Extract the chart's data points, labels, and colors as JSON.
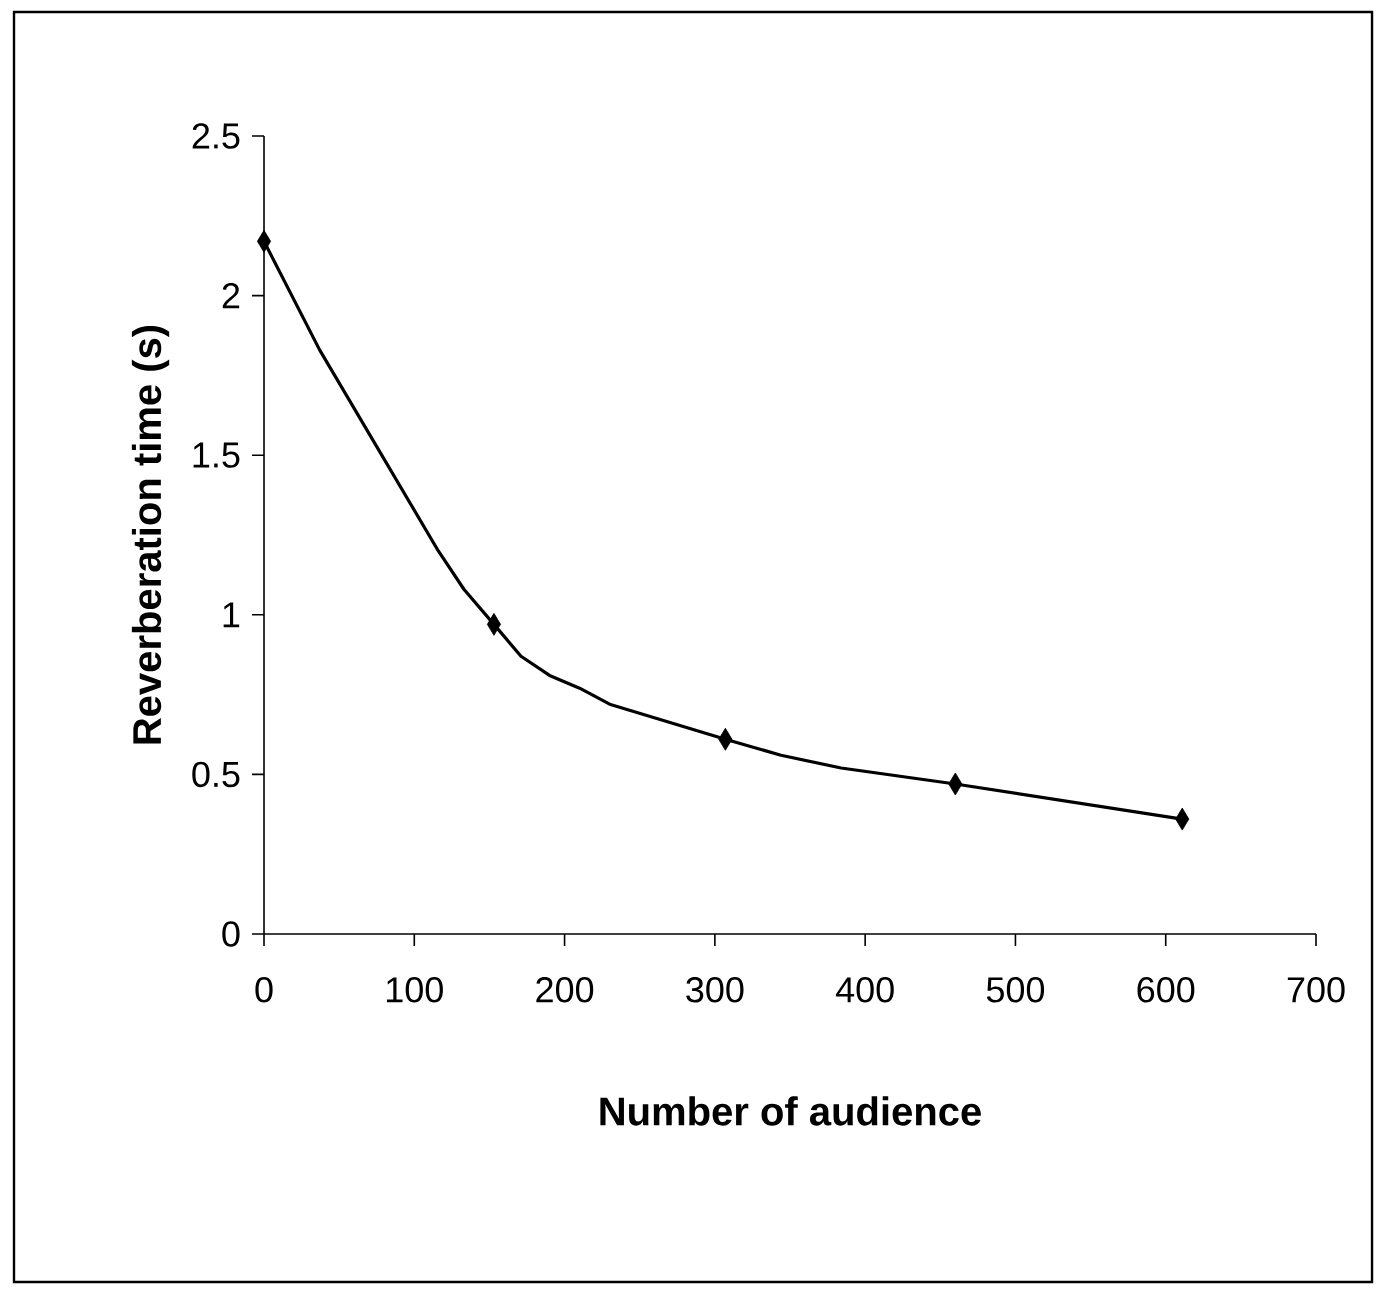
{
  "chart_data": {
    "type": "line",
    "xlabel": "Number of audience",
    "ylabel": "Reverberation time (s)",
    "xlim": [
      0,
      700
    ],
    "xticks": [
      0,
      100,
      200,
      300,
      400,
      500,
      600,
      700
    ],
    "ylim": [
      0,
      2.5
    ],
    "yticks": [
      0,
      0.5,
      1,
      1.5,
      2,
      2.5
    ],
    "series": [
      {
        "type": "line",
        "marker": "none",
        "color": "#000000",
        "x": [
          0,
          37,
          116,
          133,
          153,
          171,
          190,
          210,
          230,
          307,
          344,
          384,
          460,
          611
        ],
        "values": [
          2.17,
          1.83,
          1.2,
          1.08,
          0.97,
          0.87,
          0.81,
          0.77,
          0.72,
          0.61,
          0.56,
          0.52,
          0.47,
          0.36
        ]
      },
      {
        "type": "scatter",
        "marker": "diamond",
        "color": "#000000",
        "x": [
          0,
          153,
          307,
          460,
          611
        ],
        "values": [
          2.17,
          0.97,
          0.61,
          0.47,
          0.36
        ]
      }
    ]
  }
}
